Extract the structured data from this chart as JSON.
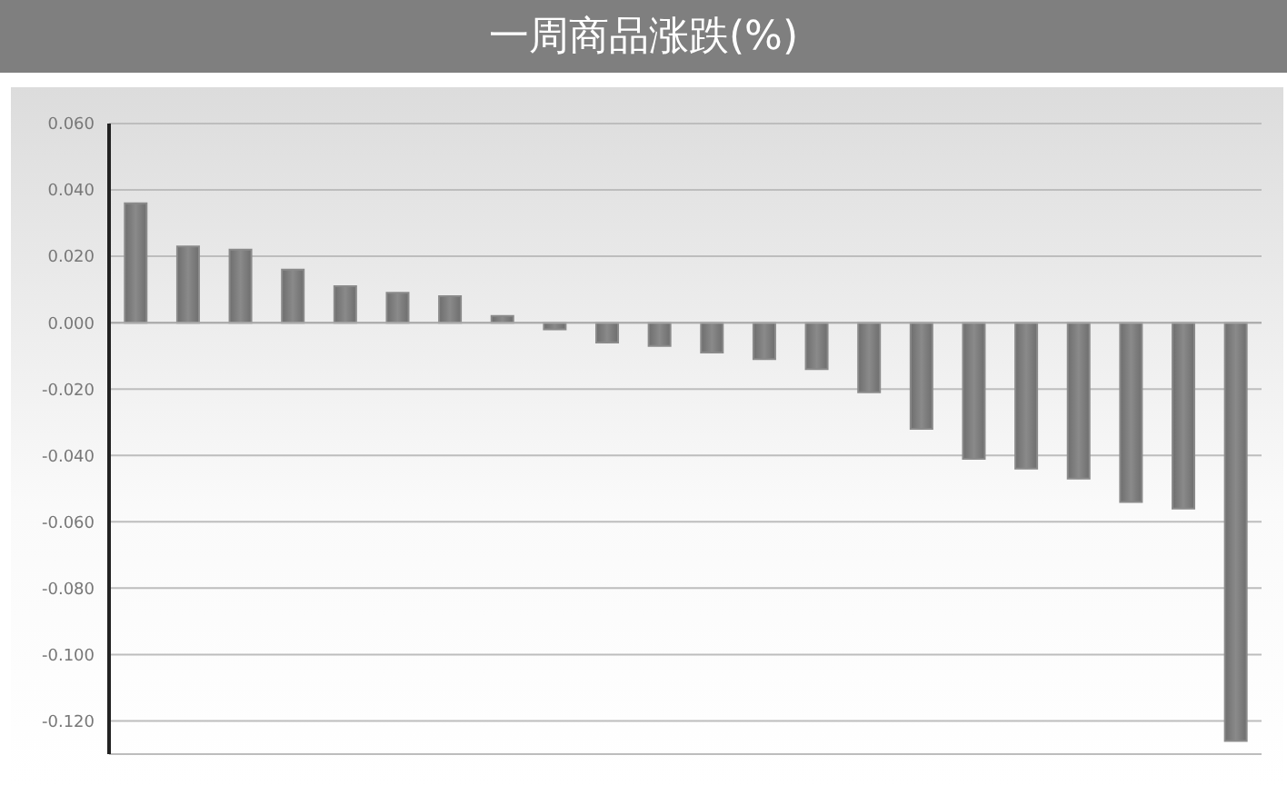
{
  "chart_data": {
    "type": "bar",
    "title": "一周商品涨跌(%)",
    "categories": [
      null,
      null,
      null,
      null,
      null,
      null,
      null,
      null,
      null,
      null,
      null,
      null,
      null,
      null,
      null,
      null,
      null,
      null,
      null,
      null,
      null,
      null
    ],
    "values": [
      0.036,
      0.023,
      0.022,
      0.016,
      0.011,
      0.009,
      0.008,
      0.002,
      -0.002,
      -0.006,
      -0.007,
      -0.009,
      -0.011,
      -0.014,
      -0.021,
      -0.032,
      -0.041,
      -0.044,
      -0.047,
      -0.054,
      -0.056,
      -0.126
    ],
    "color": "#8a8a8a",
    "ylim": [
      -0.13,
      0.06
    ],
    "yticks": [
      {
        "value": 0.06,
        "label": "0.060"
      },
      {
        "value": 0.04,
        "label": "0.040"
      },
      {
        "value": 0.02,
        "label": "0.020"
      },
      {
        "value": 0,
        "label": "0.000"
      },
      {
        "value": -0.02,
        "label": "-0.020"
      },
      {
        "value": -0.04,
        "label": "-0.040"
      },
      {
        "value": -0.06,
        "label": "-0.060"
      },
      {
        "value": -0.08,
        "label": "-0.080"
      },
      {
        "value": -0.1,
        "label": "-0.100"
      },
      {
        "value": -0.12,
        "label": "-0.120"
      }
    ],
    "grid": "y",
    "tick_labels": "y"
  }
}
